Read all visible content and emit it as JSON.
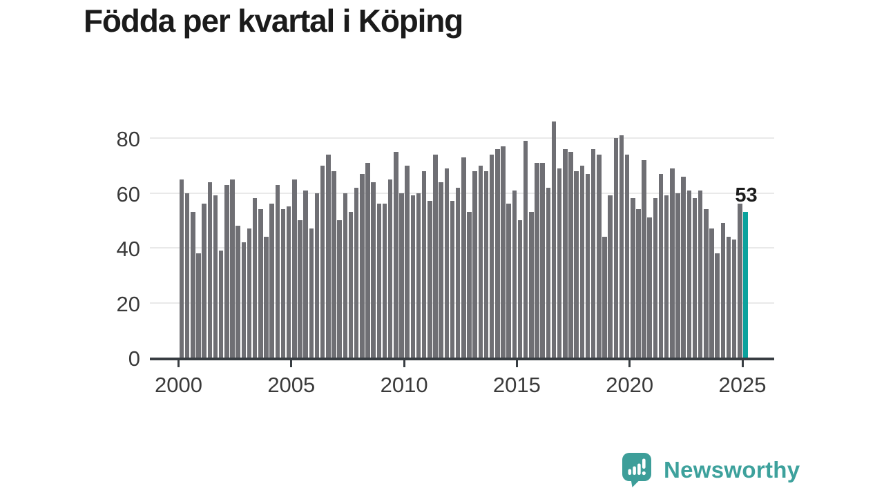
{
  "title": "Födda per kvartal i Köping",
  "chart_data": {
    "type": "bar",
    "title": "Födda per kvartal i Köping",
    "frequency": "quarterly",
    "x_first": "2000 Q1",
    "x_last": "2025 Q1",
    "values": [
      65,
      60,
      53,
      38,
      56,
      64,
      59,
      39,
      63,
      65,
      48,
      42,
      47,
      58,
      54,
      44,
      56,
      63,
      54,
      55,
      65,
      50,
      61,
      47,
      60,
      70,
      74,
      68,
      50,
      60,
      53,
      62,
      67,
      71,
      64,
      56,
      56,
      65,
      75,
      60,
      70,
      59,
      60,
      68,
      57,
      74,
      64,
      69,
      57,
      62,
      73,
      53,
      68,
      70,
      68,
      74,
      76,
      77,
      56,
      61,
      50,
      79,
      53,
      71,
      71,
      62,
      86,
      69,
      76,
      75,
      68,
      70,
      67,
      76,
      74,
      44,
      59,
      80,
      81,
      74,
      58,
      54,
      72,
      51,
      58,
      67,
      59,
      69,
      60,
      66,
      61,
      58,
      61,
      54,
      47,
      38,
      49,
      44,
      43,
      56,
      53
    ],
    "highlight": {
      "x": "2025 Q1",
      "value": 53,
      "label": "53"
    },
    "xlabel": "",
    "ylabel": "",
    "ylim": [
      0,
      88
    ],
    "y_ticks": [
      0,
      20,
      40,
      60,
      80
    ],
    "x_ticks": [
      "2000",
      "2005",
      "2010",
      "2015",
      "2020",
      "2025"
    ],
    "grid": "horizontal",
    "legend": "none",
    "bar_color": "#6f6f74",
    "highlight_color": "#0ba29d"
  },
  "branding": {
    "logo_text": "Newsworthy",
    "logo_icon": "speech-bubble-bar-chart-icon",
    "logo_color": "#3da19c",
    "bubble_color": "#3d9e99"
  }
}
